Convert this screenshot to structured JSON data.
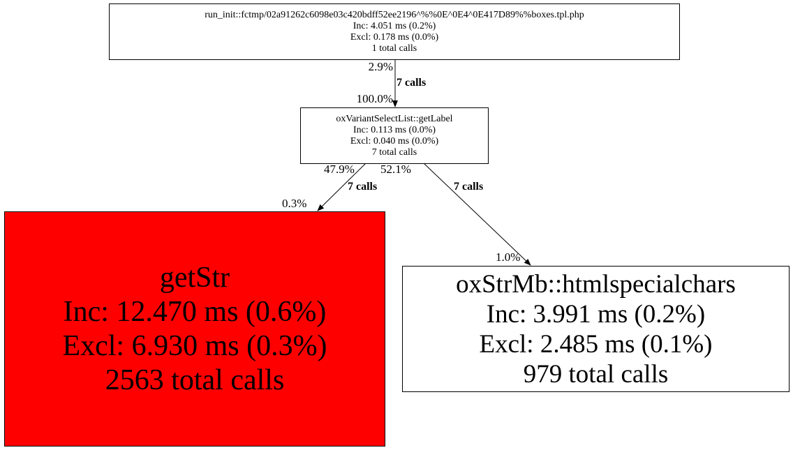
{
  "nodes": [
    {
      "id": "run_init",
      "lines": [
        "run_init::fctmp/02a91262c6098e03c420bdff52ee2196^%%0E^0E4^0E417D89%%boxes.tpl.php",
        "Inc: 4.051 ms (0.2%)",
        "Excl: 0.178 ms (0.0%)",
        "1 total calls"
      ],
      "fill": "#ffffff"
    },
    {
      "id": "getLabel",
      "lines": [
        "oxVariantSelectList::getLabel",
        "Inc: 0.113 ms (0.0%)",
        "Excl: 0.040 ms (0.0%)",
        "7 total calls"
      ],
      "fill": "#ffffff"
    },
    {
      "id": "getStr",
      "lines": [
        "getStr",
        "Inc: 12.470 ms (0.6%)",
        "Excl: 6.930 ms (0.3%)",
        "2563 total calls"
      ],
      "fill": "#ff0000"
    },
    {
      "id": "htmlspecialchars",
      "lines": [
        "oxStrMb::htmlspecialchars",
        "Inc: 3.991 ms (0.2%)",
        "Excl: 2.485 ms (0.1%)",
        "979 total calls"
      ],
      "fill": "#ffffff"
    }
  ],
  "edges": [
    {
      "from": "run_init",
      "to": "getLabel",
      "tail_pct": "2.9%",
      "label": "7 calls",
      "head_pct": "100.0%"
    },
    {
      "from": "getLabel",
      "to": "getStr",
      "tail_pct": "47.9%",
      "label": "7 calls",
      "head_pct": "0.3%"
    },
    {
      "from": "getLabel",
      "to": "htmlspecialchars",
      "tail_pct": "52.1%",
      "label": "7 calls",
      "head_pct": "1.0%"
    }
  ]
}
